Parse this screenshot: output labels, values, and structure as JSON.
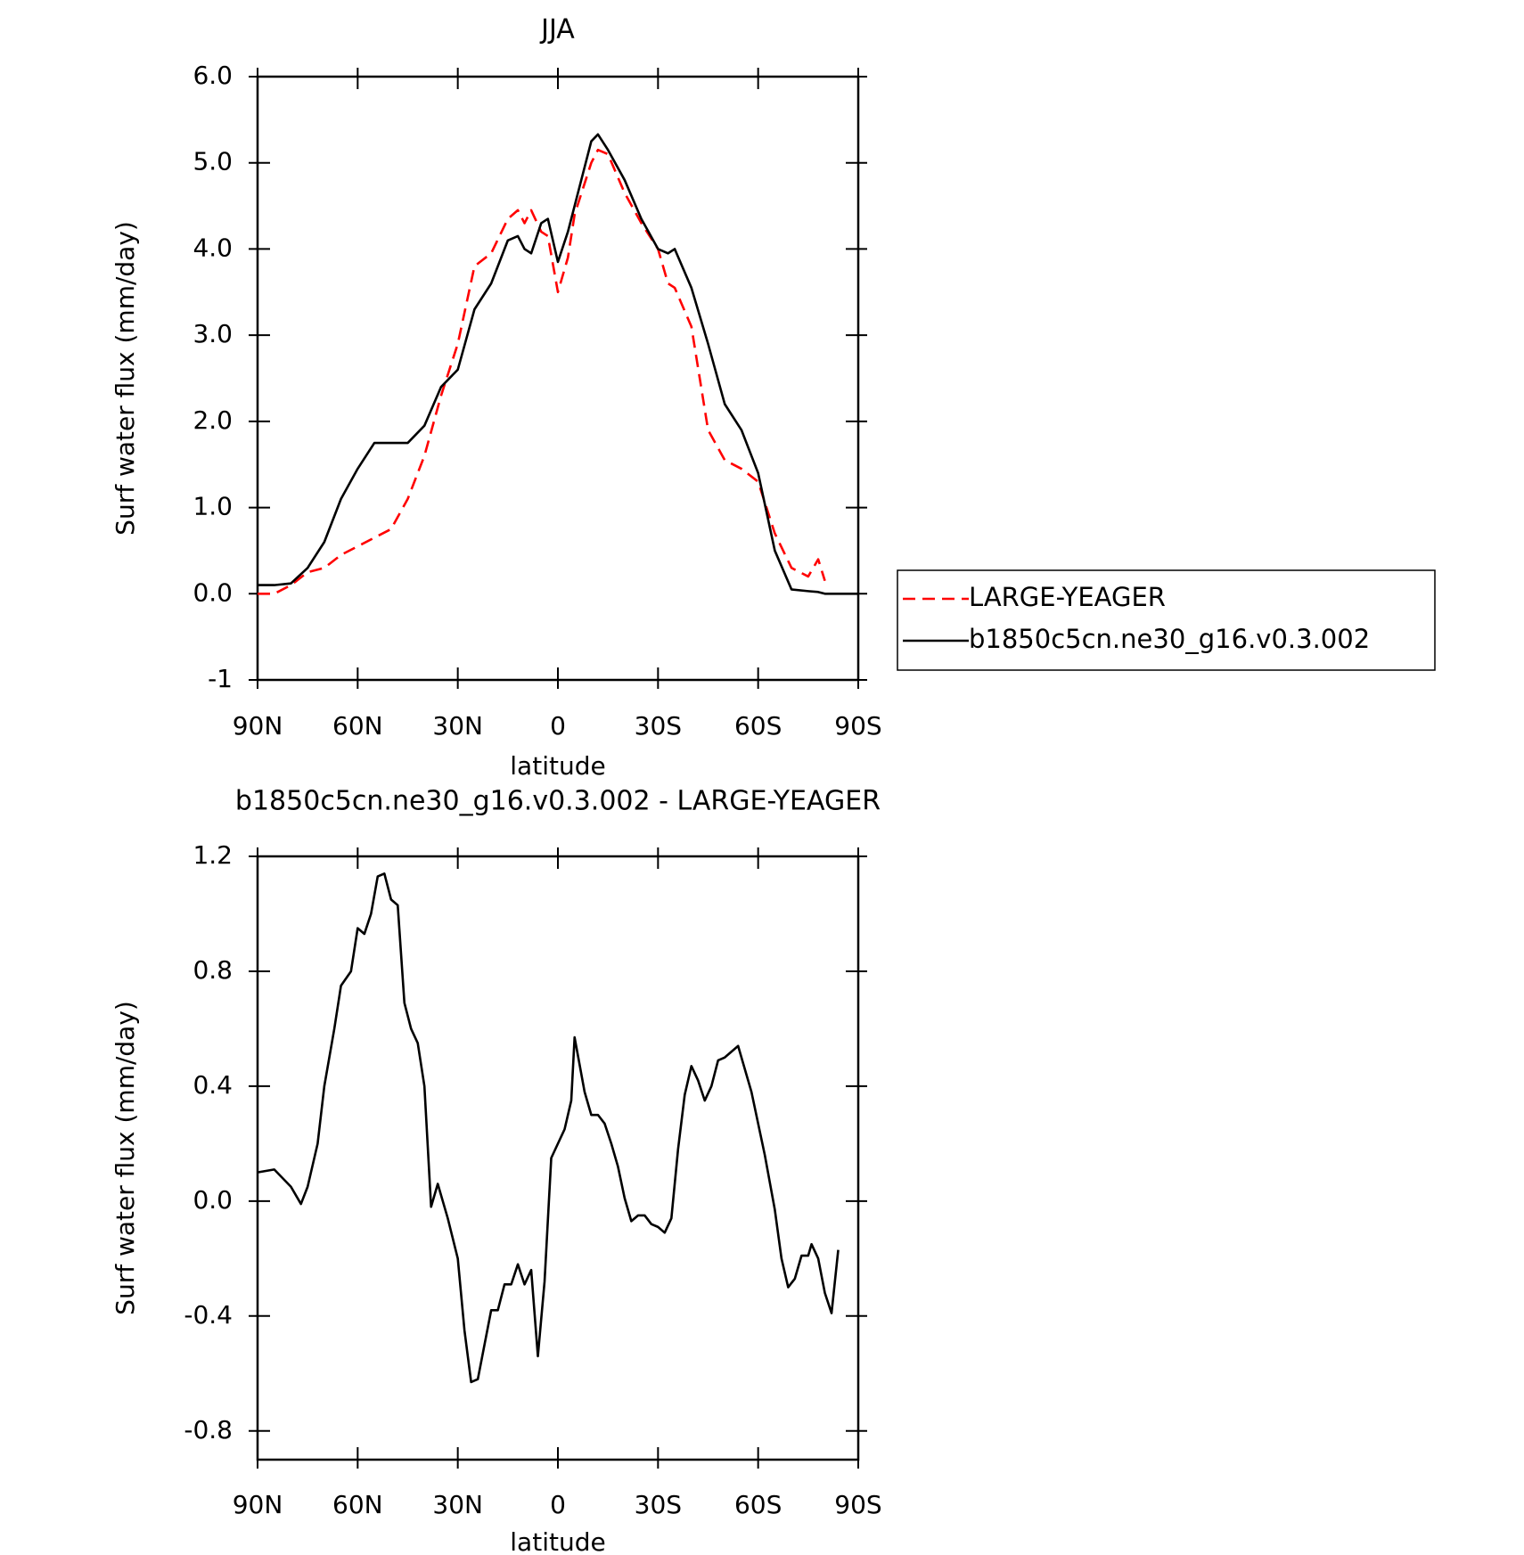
{
  "chart_data": [
    {
      "type": "line",
      "title": "JJA",
      "x_label": "latitude",
      "y_label": "Surf water flux (mm/day)",
      "x": [
        90,
        85,
        80,
        75,
        70,
        65,
        60,
        55,
        50,
        45,
        40,
        35,
        30,
        25,
        20,
        15,
        12,
        10,
        8,
        5,
        3,
        0,
        -3,
        -5,
        -10,
        -12,
        -15,
        -20,
        -25,
        -30,
        -33,
        -35,
        -40,
        -45,
        -50,
        -55,
        -60,
        -65,
        -70,
        -75,
        -78,
        -80,
        -85,
        -90
      ],
      "series": [
        {
          "name": "LARGE-YEAGER",
          "color": "#ff0000",
          "style": "dashed",
          "values": [
            0,
            0,
            0.1,
            0.25,
            0.3,
            0.45,
            0.55,
            0.65,
            0.75,
            1.1,
            1.6,
            2.3,
            2.9,
            3.8,
            3.95,
            4.35,
            4.45,
            4.3,
            4.45,
            4.2,
            4.15,
            3.5,
            3.9,
            4.4,
            5.0,
            5.15,
            5.1,
            4.65,
            4.3,
            4.0,
            3.6,
            3.55,
            3.1,
            1.9,
            1.55,
            1.45,
            1.3,
            0.7,
            0.3,
            0.2,
            0.4,
            0.15,
            null,
            null
          ]
        },
        {
          "name": "b1850c5cn.ne30_g16.v0.3.002",
          "color": "#000000",
          "style": "solid",
          "values": [
            0.1,
            0.1,
            0.12,
            0.3,
            0.6,
            1.1,
            1.45,
            1.75,
            1.75,
            1.75,
            1.95,
            2.4,
            2.6,
            3.3,
            3.6,
            4.1,
            4.15,
            4.0,
            3.95,
            4.3,
            4.35,
            3.85,
            4.2,
            4.5,
            5.25,
            5.33,
            5.15,
            4.8,
            4.35,
            4.0,
            3.95,
            4.0,
            3.55,
            2.9,
            2.2,
            1.9,
            1.4,
            0.5,
            0.05,
            0.03,
            0.02,
            0,
            0,
            0
          ]
        }
      ],
      "xlim": [
        90,
        -90
      ],
      "xticks": [
        {
          "value": 90,
          "label": "90N"
        },
        {
          "value": 60,
          "label": "60N"
        },
        {
          "value": 30,
          "label": "30N"
        },
        0,
        {
          "value": -30,
          "label": "30S"
        },
        {
          "value": -60,
          "label": "60S"
        },
        {
          "value": -90,
          "label": "90S"
        }
      ],
      "ylim": [
        -1,
        6
      ],
      "yticks": [
        -1,
        {
          "value": 0,
          "label": "0.0"
        },
        {
          "value": 1,
          "label": "1.0"
        },
        {
          "value": 2,
          "label": "2.0"
        },
        {
          "value": 3,
          "label": "3.0"
        },
        {
          "value": 4,
          "label": "4.0"
        },
        {
          "value": 5,
          "label": "5.0"
        },
        {
          "value": 6,
          "label": "6.0"
        }
      ],
      "legend": "right"
    },
    {
      "type": "line",
      "title": "b1850c5cn.ne30_g16.v0.3.002 - LARGE-YEAGER",
      "x_label": "latitude",
      "y_label": "Surf water flux (mm/day)",
      "x": [
        90,
        85,
        80,
        77,
        75,
        72,
        70,
        67,
        65,
        62,
        60,
        58,
        56,
        54,
        52,
        50,
        48,
        46,
        44,
        42,
        40,
        38,
        36,
        33,
        30,
        28,
        26,
        24,
        20,
        18,
        16,
        14,
        12,
        10,
        8,
        6,
        4,
        2,
        0,
        -2,
        -4,
        -5,
        -8,
        -10,
        -12,
        -14,
        -16,
        -18,
        -20,
        -22,
        -24,
        -26,
        -28,
        -30,
        -32,
        -34,
        -36,
        -38,
        -40,
        -42,
        -44,
        -46,
        -48,
        -50,
        -54,
        -58,
        -62,
        -65,
        -67,
        -69,
        -71,
        -73,
        -75,
        -76,
        -78,
        -80,
        -82,
        -84
      ],
      "series": [
        {
          "color": "#000000",
          "style": "solid",
          "values": [
            0.1,
            0.11,
            0.05,
            -0.01,
            0.05,
            0.2,
            0.4,
            0.6,
            0.75,
            0.8,
            0.95,
            0.93,
            1.0,
            1.13,
            1.14,
            1.05,
            1.03,
            0.69,
            0.6,
            0.55,
            0.4,
            -0.02,
            0.06,
            -0.06,
            -0.2,
            -0.45,
            -0.63,
            -0.62,
            -0.38,
            -0.38,
            -0.29,
            -0.29,
            -0.22,
            -0.29,
            -0.24,
            -0.54,
            -0.28,
            0.15,
            0.2,
            0.25,
            0.35,
            0.57,
            0.38,
            0.3,
            0.3,
            0.27,
            0.2,
            0.12,
            0.01,
            -0.07,
            -0.05,
            -0.05,
            -0.08,
            -0.09,
            -0.11,
            -0.06,
            0.18,
            0.37,
            0.47,
            0.42,
            0.35,
            0.4,
            0.49,
            0.5,
            0.54,
            0.38,
            0.16,
            -0.03,
            -0.2,
            -0.3,
            -0.27,
            -0.19,
            -0.19,
            -0.15,
            -0.2,
            -0.32,
            -0.39,
            -0.17
          ]
        }
      ],
      "xlim": [
        90,
        -90
      ],
      "xticks": [
        {
          "value": 90,
          "label": "90N"
        },
        {
          "value": 60,
          "label": "60N"
        },
        {
          "value": 30,
          "label": "30N"
        },
        0,
        {
          "value": -30,
          "label": "30S"
        },
        {
          "value": -60,
          "label": "60S"
        },
        {
          "value": -90,
          "label": "90S"
        }
      ],
      "ylim": [
        -0.9,
        1.2
      ],
      "yticks": [
        -0.8,
        -0.4,
        {
          "value": 0,
          "label": "0.0"
        },
        0.4,
        0.8,
        1.2
      ]
    }
  ]
}
